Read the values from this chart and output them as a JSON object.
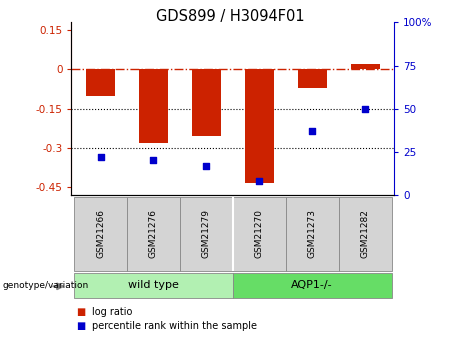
{
  "title": "GDS899 / H3094F01",
  "samples": [
    "GSM21266",
    "GSM21276",
    "GSM21279",
    "GSM21270",
    "GSM21273",
    "GSM21282"
  ],
  "log_ratios": [
    -0.1,
    -0.28,
    -0.255,
    -0.435,
    -0.07,
    0.022
  ],
  "percentile_ranks": [
    22,
    20,
    17,
    8,
    37,
    50
  ],
  "group1_label": "wild type",
  "group2_label": "AQP1-/-",
  "group1_color": "#b2f0b2",
  "group2_color": "#66dd66",
  "bar_color": "#CC2200",
  "dot_color": "#0000CC",
  "hline_color": "#CC2200",
  "dotted_lines": [
    -0.15,
    -0.3
  ],
  "ylim_left": [
    -0.48,
    0.18
  ],
  "ylim_right": [
    0,
    100
  ],
  "yticks_left": [
    0.15,
    0.0,
    -0.15,
    -0.3,
    -0.45
  ],
  "yticks_right": [
    100,
    75,
    50,
    25,
    0
  ],
  "bar_width": 0.55,
  "legend_items": [
    {
      "label": "log ratio",
      "color": "#CC2200"
    },
    {
      "label": "percentile rank within the sample",
      "color": "#0000CC"
    }
  ]
}
